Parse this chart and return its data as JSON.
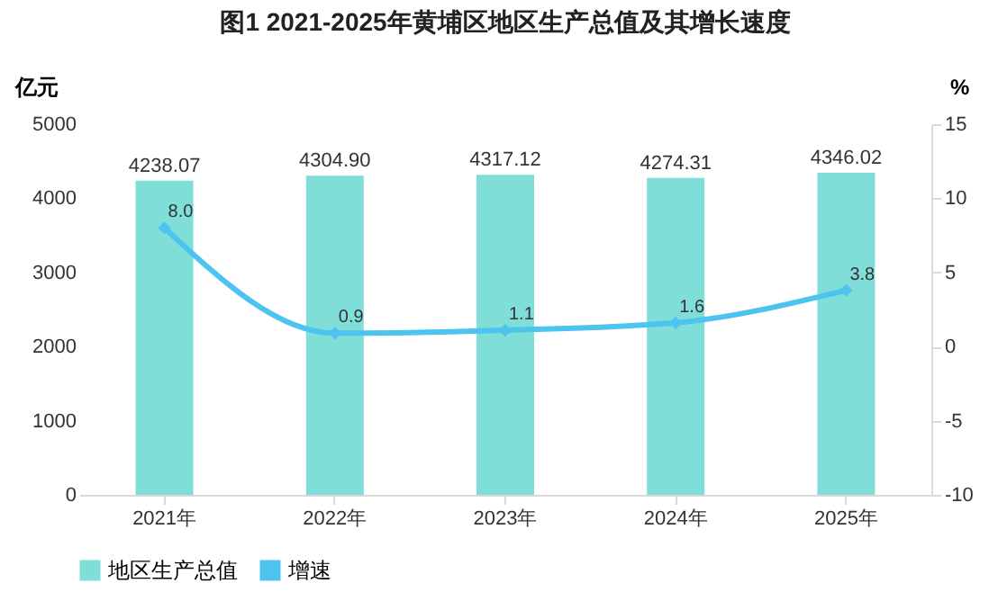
{
  "chart_data": {
    "type": "bar",
    "title": "图1  2021-2025年黄埔区地区生产总值及其增长速度",
    "ylabel": "亿元",
    "y2label": "%",
    "categories": [
      "2021年",
      "2022年",
      "2023年",
      "2024年",
      "2025年"
    ],
    "series": [
      {
        "name": "地区生产总值",
        "color": "#7fded8",
        "values": [
          4238.07,
          4304.9,
          4317.12,
          4274.31,
          4346.02
        ],
        "value_labels": [
          "4238.07",
          "4304.90",
          "4317.12",
          "4274.31",
          "4346.02"
        ]
      },
      {
        "name": "增速",
        "type": "line",
        "axis": "y2",
        "color": "#4dc3f0",
        "values": [
          8.0,
          0.9,
          1.1,
          1.6,
          3.8
        ],
        "value_labels": [
          "8.0",
          "0.9",
          "1.1",
          "1.6",
          "3.8"
        ]
      }
    ],
    "ylim": [
      0,
      5000
    ],
    "yticks": [
      0,
      1000,
      2000,
      3000,
      4000,
      5000
    ],
    "y2lim": [
      -10,
      15
    ],
    "y2ticks": [
      -10,
      -5,
      0,
      5,
      10,
      15
    ],
    "marker": "diamond",
    "line_style": "solid",
    "legend": "bottom",
    "grid": false
  }
}
